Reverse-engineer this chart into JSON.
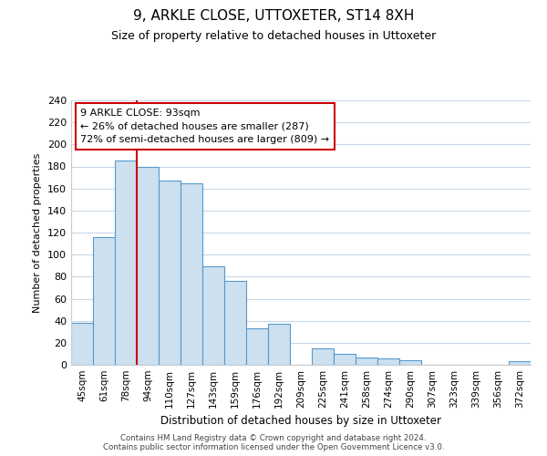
{
  "title": "9, ARKLE CLOSE, UTTOXETER, ST14 8XH",
  "subtitle": "Size of property relative to detached houses in Uttoxeter",
  "xlabel": "Distribution of detached houses by size in Uttoxeter",
  "ylabel": "Number of detached properties",
  "bin_labels": [
    "45sqm",
    "61sqm",
    "78sqm",
    "94sqm",
    "110sqm",
    "127sqm",
    "143sqm",
    "159sqm",
    "176sqm",
    "192sqm",
    "209sqm",
    "225sqm",
    "241sqm",
    "258sqm",
    "274sqm",
    "290sqm",
    "307sqm",
    "323sqm",
    "339sqm",
    "356sqm",
    "372sqm"
  ],
  "bar_heights": [
    38,
    116,
    185,
    180,
    167,
    165,
    89,
    76,
    33,
    37,
    0,
    15,
    10,
    7,
    6,
    4,
    0,
    0,
    0,
    0,
    3
  ],
  "bar_color": "#cce0f0",
  "bar_edge_color": "#5599cc",
  "property_line_x": 2.5,
  "property_line_color": "#cc0000",
  "annotation_text": "9 ARKLE CLOSE: 93sqm\n← 26% of detached houses are smaller (287)\n72% of semi-detached houses are larger (809) →",
  "annotation_box_color": "#ffffff",
  "annotation_box_edge_color": "#cc0000",
  "ylim": [
    0,
    240
  ],
  "yticks": [
    0,
    20,
    40,
    60,
    80,
    100,
    120,
    140,
    160,
    180,
    200,
    220,
    240
  ],
  "footer_text": "Contains HM Land Registry data © Crown copyright and database right 2024.\nContains public sector information licensed under the Open Government Licence v3.0.",
  "background_color": "#ffffff",
  "grid_color": "#c8d8e8"
}
